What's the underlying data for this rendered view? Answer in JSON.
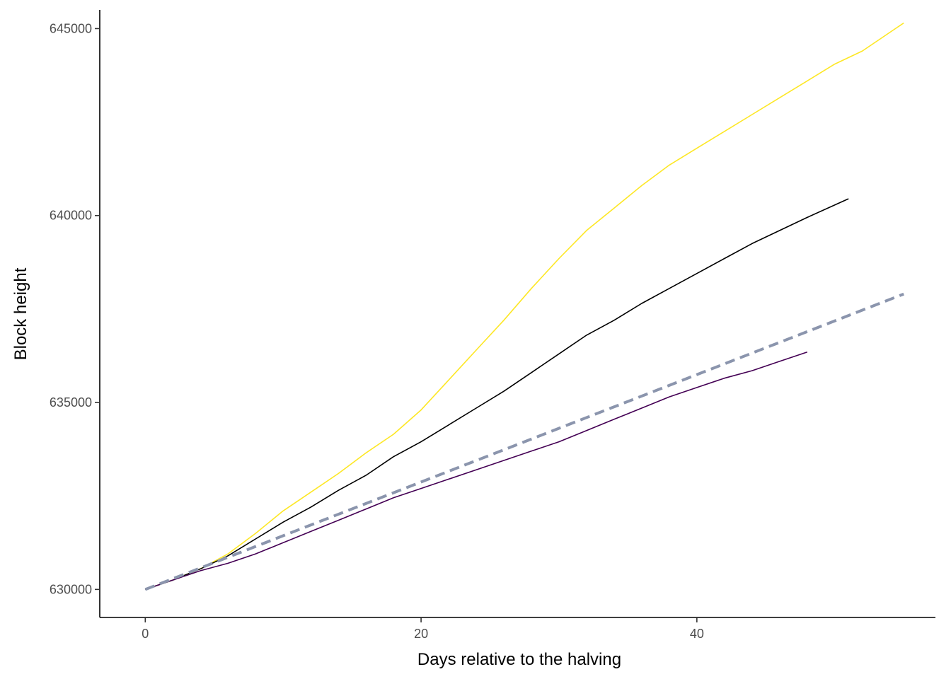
{
  "chart_data": {
    "type": "line",
    "title": "",
    "xlabel": "Days relative to the halving",
    "ylabel": "Block height",
    "xlim": [
      -3.3,
      57.3
    ],
    "ylim": [
      629250,
      645500
    ],
    "x_ticks": [
      0,
      20,
      40
    ],
    "y_ticks": [
      630000,
      635000,
      640000,
      645000
    ],
    "grid": false,
    "legend": "none",
    "series": [
      {
        "color": "#FDE725",
        "width": 1.6,
        "dash": "",
        "x": [
          0,
          2,
          4,
          6,
          8,
          10,
          12,
          14,
          16,
          18,
          20,
          22,
          24,
          26,
          28,
          30,
          32,
          34,
          36,
          38,
          40,
          42,
          44,
          46,
          48,
          50,
          52,
          55
        ],
        "y": [
          630000,
          630250,
          630550,
          630950,
          631500,
          632100,
          632600,
          633100,
          633650,
          634150,
          634800,
          635600,
          636400,
          637200,
          638050,
          638850,
          639600,
          640200,
          640800,
          641350,
          641800,
          642250,
          642700,
          643150,
          643600,
          644050,
          644400,
          645150
        ]
      },
      {
        "color": "#000000",
        "width": 1.6,
        "dash": "",
        "x": [
          0,
          2,
          4,
          6,
          8,
          10,
          12,
          14,
          16,
          18,
          20,
          22,
          24,
          26,
          28,
          30,
          32,
          34,
          36,
          38,
          40,
          42,
          44,
          46,
          48,
          51
        ],
        "y": [
          630000,
          630250,
          630550,
          630900,
          631350,
          631800,
          632200,
          632650,
          633050,
          633550,
          633950,
          634400,
          634850,
          635300,
          635800,
          636300,
          636800,
          637200,
          637650,
          638050,
          638450,
          638850,
          639250,
          639600,
          639950,
          640450
        ]
      },
      {
        "color": "#440154",
        "width": 1.6,
        "dash": "",
        "x": [
          0,
          2,
          4,
          6,
          8,
          10,
          12,
          14,
          16,
          18,
          20,
          22,
          24,
          26,
          28,
          30,
          32,
          34,
          36,
          38,
          40,
          42,
          44,
          46,
          48
        ],
        "y": [
          630000,
          630250,
          630500,
          630700,
          630950,
          631250,
          631550,
          631850,
          632150,
          632450,
          632700,
          632950,
          633200,
          633450,
          633700,
          633950,
          634250,
          634550,
          634850,
          635150,
          635400,
          635650,
          635850,
          636100,
          636350
        ]
      },
      {
        "color": "#8B95AD",
        "width": 4,
        "dash": "14 8",
        "x": [
          0,
          55
        ],
        "y": [
          630000,
          637900
        ]
      }
    ]
  }
}
